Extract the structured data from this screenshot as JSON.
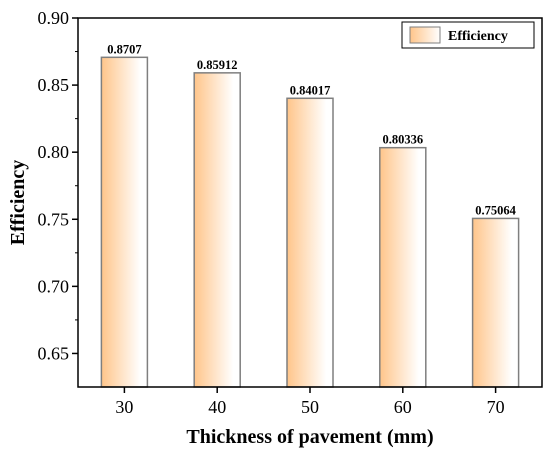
{
  "chart_data": {
    "type": "bar",
    "categories": [
      "30",
      "40",
      "50",
      "60",
      "70"
    ],
    "series": [
      {
        "name": "Efficiency",
        "values": [
          0.8707,
          0.85912,
          0.84017,
          0.80336,
          0.75064
        ],
        "value_labels": [
          "0.8707",
          "0.85912",
          "0.84017",
          "0.80336",
          "0.75064"
        ]
      }
    ],
    "xlabel": "Thickness of pavement (mm)",
    "ylabel": "Efficiency",
    "ylim": [
      0.625,
      0.9
    ],
    "yticks": [
      "0.65",
      "0.70",
      "0.75",
      "0.80",
      "0.85",
      "0.90"
    ],
    "grid": false,
    "legend": "top-right",
    "colors": {
      "bar_fill_edge": "#FFC58A",
      "bar_fill_center": "#FFFFFF",
      "bar_stroke": "#7F7F7F"
    }
  }
}
